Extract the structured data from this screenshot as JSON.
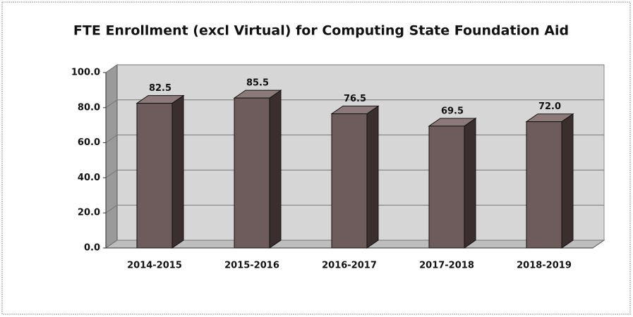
{
  "chart_data": {
    "type": "bar3d",
    "title": "FTE Enrollment (excl Virtual) for Computing State Foundation Aid",
    "categories": [
      "2014-2015",
      "2015-2016",
      "2016-2017",
      "2017-2018",
      "2018-2019"
    ],
    "values": [
      82.5,
      85.5,
      76.5,
      69.5,
      72.0
    ],
    "value_labels": [
      "82.5",
      "85.5",
      "76.5",
      "69.5",
      "72.0"
    ],
    "color": "#6e5c5c",
    "ylim": [
      0,
      100
    ],
    "yticks": [
      {
        "value": 0,
        "label": "0.0"
      },
      {
        "value": 20,
        "label": "20.0"
      },
      {
        "value": 40,
        "label": "40.0"
      },
      {
        "value": 60,
        "label": "60.0"
      },
      {
        "value": 80,
        "label": "80.0"
      },
      {
        "value": 100,
        "label": "100.0"
      }
    ],
    "grid": true
  }
}
